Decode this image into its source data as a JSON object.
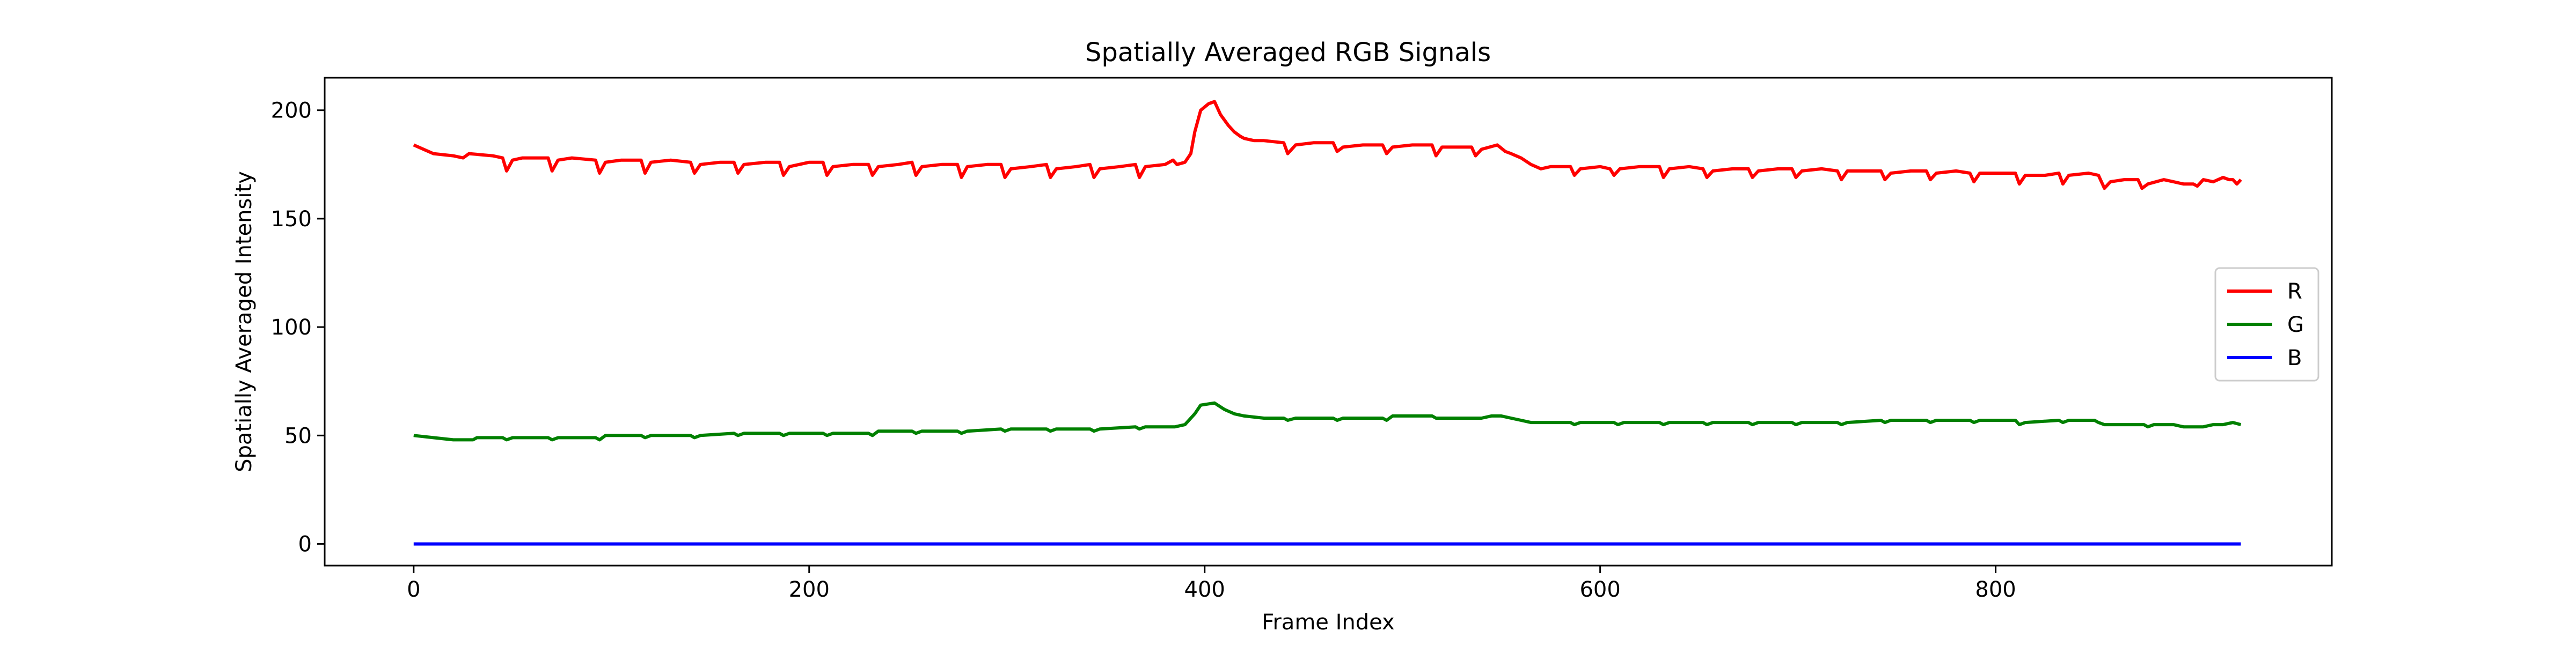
{
  "chart_data": {
    "type": "line",
    "title": "Spatially Averaged RGB Signals",
    "xlabel": "Frame Index",
    "ylabel": "Spatially Averaged Intensity",
    "xlim": [
      -45,
      970
    ],
    "ylim": [
      -10,
      215
    ],
    "xticks": [
      0,
      200,
      400,
      600,
      800
    ],
    "yticks": [
      0,
      50,
      100,
      150,
      200
    ],
    "grid": false,
    "legend_position": "center-right",
    "frame_count": 925,
    "series": [
      {
        "name": "R",
        "color": "#ff0000",
        "points": [
          [
            0,
            184
          ],
          [
            5,
            182
          ],
          [
            10,
            180
          ],
          [
            20,
            179
          ],
          [
            25,
            178
          ],
          [
            28,
            180
          ],
          [
            40,
            179
          ],
          [
            45,
            178
          ],
          [
            47,
            172
          ],
          [
            50,
            177
          ],
          [
            55,
            178
          ],
          [
            68,
            178
          ],
          [
            70,
            172
          ],
          [
            73,
            177
          ],
          [
            80,
            178
          ],
          [
            92,
            177
          ],
          [
            94,
            171
          ],
          [
            97,
            176
          ],
          [
            105,
            177
          ],
          [
            115,
            177
          ],
          [
            117,
            171
          ],
          [
            120,
            176
          ],
          [
            130,
            177
          ],
          [
            140,
            176
          ],
          [
            142,
            171
          ],
          [
            145,
            175
          ],
          [
            155,
            176
          ],
          [
            162,
            176
          ],
          [
            164,
            171
          ],
          [
            167,
            175
          ],
          [
            178,
            176
          ],
          [
            185,
            176
          ],
          [
            187,
            170
          ],
          [
            190,
            174
          ],
          [
            200,
            176
          ],
          [
            207,
            176
          ],
          [
            209,
            170
          ],
          [
            212,
            174
          ],
          [
            222,
            175
          ],
          [
            230,
            175
          ],
          [
            232,
            170
          ],
          [
            235,
            174
          ],
          [
            245,
            175
          ],
          [
            252,
            176
          ],
          [
            254,
            170
          ],
          [
            257,
            174
          ],
          [
            267,
            175
          ],
          [
            275,
            175
          ],
          [
            277,
            169
          ],
          [
            280,
            174
          ],
          [
            290,
            175
          ],
          [
            297,
            175
          ],
          [
            299,
            169
          ],
          [
            302,
            173
          ],
          [
            312,
            174
          ],
          [
            320,
            175
          ],
          [
            322,
            169
          ],
          [
            325,
            173
          ],
          [
            335,
            174
          ],
          [
            342,
            175
          ],
          [
            344,
            169
          ],
          [
            347,
            173
          ],
          [
            357,
            174
          ],
          [
            365,
            175
          ],
          [
            367,
            169
          ],
          [
            370,
            174
          ],
          [
            380,
            175
          ],
          [
            384,
            177
          ],
          [
            386,
            175
          ],
          [
            390,
            176
          ],
          [
            393,
            180
          ],
          [
            395,
            190
          ],
          [
            398,
            200
          ],
          [
            402,
            203
          ],
          [
            405,
            204
          ],
          [
            408,
            198
          ],
          [
            412,
            193
          ],
          [
            415,
            190
          ],
          [
            418,
            188
          ],
          [
            420,
            187
          ],
          [
            425,
            186
          ],
          [
            430,
            186
          ],
          [
            440,
            185
          ],
          [
            442,
            180
          ],
          [
            446,
            184
          ],
          [
            455,
            185
          ],
          [
            465,
            185
          ],
          [
            467,
            181
          ],
          [
            470,
            183
          ],
          [
            480,
            184
          ],
          [
            490,
            184
          ],
          [
            492,
            180
          ],
          [
            495,
            183
          ],
          [
            505,
            184
          ],
          [
            515,
            184
          ],
          [
            517,
            179
          ],
          [
            520,
            183
          ],
          [
            535,
            183
          ],
          [
            537,
            179
          ],
          [
            540,
            182
          ],
          [
            548,
            184
          ],
          [
            552,
            181
          ],
          [
            555,
            180
          ],
          [
            560,
            178
          ],
          [
            565,
            175
          ],
          [
            570,
            173
          ],
          [
            575,
            174
          ],
          [
            580,
            174
          ],
          [
            585,
            174
          ],
          [
            587,
            170
          ],
          [
            590,
            173
          ],
          [
            600,
            174
          ],
          [
            605,
            173
          ],
          [
            607,
            170
          ],
          [
            610,
            173
          ],
          [
            620,
            174
          ],
          [
            630,
            174
          ],
          [
            632,
            169
          ],
          [
            635,
            173
          ],
          [
            645,
            174
          ],
          [
            652,
            173
          ],
          [
            654,
            169
          ],
          [
            657,
            172
          ],
          [
            667,
            173
          ],
          [
            675,
            173
          ],
          [
            677,
            169
          ],
          [
            680,
            172
          ],
          [
            690,
            173
          ],
          [
            697,
            173
          ],
          [
            699,
            169
          ],
          [
            702,
            172
          ],
          [
            712,
            173
          ],
          [
            720,
            172
          ],
          [
            722,
            168
          ],
          [
            725,
            172
          ],
          [
            735,
            172
          ],
          [
            742,
            172
          ],
          [
            744,
            168
          ],
          [
            747,
            171
          ],
          [
            757,
            172
          ],
          [
            765,
            172
          ],
          [
            767,
            168
          ],
          [
            770,
            171
          ],
          [
            780,
            172
          ],
          [
            787,
            171
          ],
          [
            789,
            167
          ],
          [
            792,
            171
          ],
          [
            802,
            171
          ],
          [
            810,
            171
          ],
          [
            812,
            166
          ],
          [
            815,
            170
          ],
          [
            825,
            170
          ],
          [
            832,
            171
          ],
          [
            834,
            166
          ],
          [
            837,
            170
          ],
          [
            847,
            171
          ],
          [
            852,
            170
          ],
          [
            855,
            164
          ],
          [
            858,
            167
          ],
          [
            865,
            168
          ],
          [
            872,
            168
          ],
          [
            874,
            164
          ],
          [
            877,
            166
          ],
          [
            885,
            168
          ],
          [
            890,
            167
          ],
          [
            895,
            166
          ],
          [
            900,
            166
          ],
          [
            902,
            165
          ],
          [
            905,
            168
          ],
          [
            910,
            167
          ],
          [
            915,
            169
          ],
          [
            918,
            168
          ],
          [
            920,
            168
          ],
          [
            922,
            166
          ],
          [
            924,
            168
          ]
        ]
      },
      {
        "name": "G",
        "color": "#008000",
        "points": [
          [
            0,
            50
          ],
          [
            10,
            49
          ],
          [
            20,
            48
          ],
          [
            30,
            48
          ],
          [
            32,
            49
          ],
          [
            45,
            49
          ],
          [
            47,
            48
          ],
          [
            50,
            49
          ],
          [
            68,
            49
          ],
          [
            70,
            48
          ],
          [
            73,
            49
          ],
          [
            92,
            49
          ],
          [
            94,
            48
          ],
          [
            97,
            50
          ],
          [
            115,
            50
          ],
          [
            117,
            49
          ],
          [
            120,
            50
          ],
          [
            140,
            50
          ],
          [
            142,
            49
          ],
          [
            145,
            50
          ],
          [
            162,
            51
          ],
          [
            164,
            50
          ],
          [
            167,
            51
          ],
          [
            185,
            51
          ],
          [
            187,
            50
          ],
          [
            190,
            51
          ],
          [
            207,
            51
          ],
          [
            209,
            50
          ],
          [
            212,
            51
          ],
          [
            230,
            51
          ],
          [
            232,
            50
          ],
          [
            235,
            52
          ],
          [
            252,
            52
          ],
          [
            254,
            51
          ],
          [
            257,
            52
          ],
          [
            275,
            52
          ],
          [
            277,
            51
          ],
          [
            280,
            52
          ],
          [
            297,
            53
          ],
          [
            299,
            52
          ],
          [
            302,
            53
          ],
          [
            320,
            53
          ],
          [
            322,
            52
          ],
          [
            325,
            53
          ],
          [
            342,
            53
          ],
          [
            344,
            52
          ],
          [
            347,
            53
          ],
          [
            365,
            54
          ],
          [
            367,
            53
          ],
          [
            370,
            54
          ],
          [
            385,
            54
          ],
          [
            390,
            55
          ],
          [
            395,
            60
          ],
          [
            398,
            64
          ],
          [
            405,
            65
          ],
          [
            410,
            62
          ],
          [
            415,
            60
          ],
          [
            420,
            59
          ],
          [
            430,
            58
          ],
          [
            440,
            58
          ],
          [
            442,
            57
          ],
          [
            446,
            58
          ],
          [
            465,
            58
          ],
          [
            467,
            57
          ],
          [
            470,
            58
          ],
          [
            490,
            58
          ],
          [
            492,
            57
          ],
          [
            495,
            59
          ],
          [
            515,
            59
          ],
          [
            517,
            58
          ],
          [
            520,
            58
          ],
          [
            540,
            58
          ],
          [
            545,
            59
          ],
          [
            550,
            59
          ],
          [
            555,
            58
          ],
          [
            560,
            57
          ],
          [
            565,
            56
          ],
          [
            585,
            56
          ],
          [
            587,
            55
          ],
          [
            590,
            56
          ],
          [
            607,
            56
          ],
          [
            609,
            55
          ],
          [
            612,
            56
          ],
          [
            630,
            56
          ],
          [
            632,
            55
          ],
          [
            635,
            56
          ],
          [
            652,
            56
          ],
          [
            654,
            55
          ],
          [
            657,
            56
          ],
          [
            675,
            56
          ],
          [
            677,
            55
          ],
          [
            680,
            56
          ],
          [
            697,
            56
          ],
          [
            699,
            55
          ],
          [
            702,
            56
          ],
          [
            720,
            56
          ],
          [
            722,
            55
          ],
          [
            725,
            56
          ],
          [
            742,
            57
          ],
          [
            744,
            56
          ],
          [
            747,
            57
          ],
          [
            765,
            57
          ],
          [
            767,
            56
          ],
          [
            770,
            57
          ],
          [
            787,
            57
          ],
          [
            789,
            56
          ],
          [
            792,
            57
          ],
          [
            810,
            57
          ],
          [
            812,
            55
          ],
          [
            815,
            56
          ],
          [
            832,
            57
          ],
          [
            834,
            56
          ],
          [
            837,
            57
          ],
          [
            850,
            57
          ],
          [
            852,
            56
          ],
          [
            855,
            55
          ],
          [
            870,
            55
          ],
          [
            875,
            55
          ],
          [
            877,
            54
          ],
          [
            880,
            55
          ],
          [
            885,
            55
          ],
          [
            890,
            55
          ],
          [
            895,
            54
          ],
          [
            905,
            54
          ],
          [
            910,
            55
          ],
          [
            915,
            55
          ],
          [
            920,
            56
          ],
          [
            924,
            55
          ]
        ]
      },
      {
        "name": "B",
        "color": "#0000ff",
        "points": [
          [
            0,
            0
          ],
          [
            924,
            0
          ]
        ]
      }
    ]
  }
}
